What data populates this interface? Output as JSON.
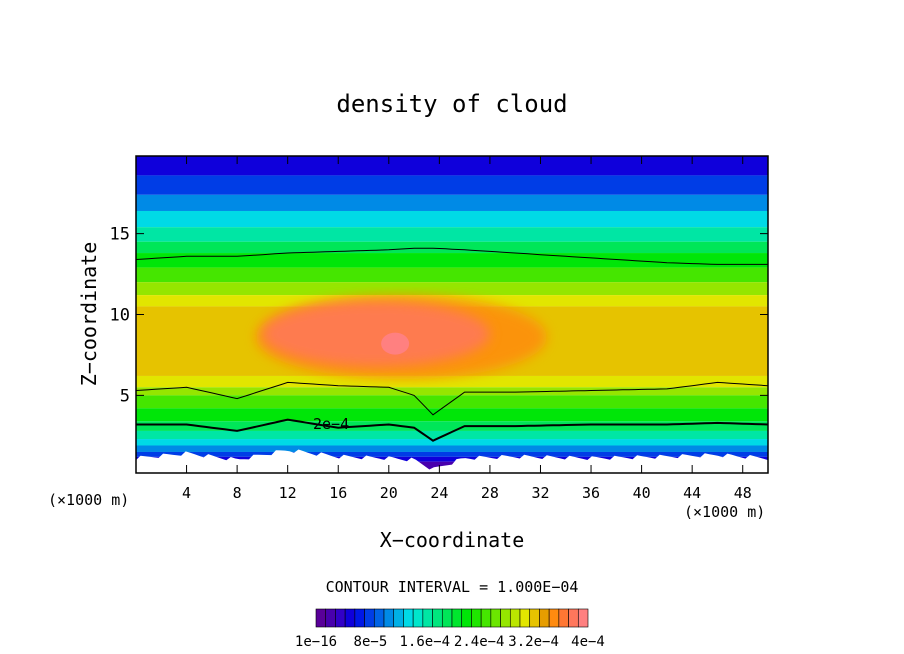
{
  "chart_data": {
    "type": "heatmap",
    "title": "density of cloud",
    "xlabel": "X−coordinate",
    "ylabel": "Z−coordinate",
    "x_unit_left": "(×1000 m)",
    "x_unit_right": "(×1000 m)",
    "xlim": [
      0,
      50
    ],
    "ylim": [
      0.2,
      19.8
    ],
    "x_ticks": [
      4,
      8,
      12,
      16,
      20,
      24,
      28,
      32,
      36,
      40,
      44,
      48
    ],
    "y_ticks": [
      5,
      10,
      15
    ],
    "contour_interval_label": "CONTOUR INTERVAL = 1.000E−04",
    "contour_label": "2e−4",
    "colorbar": {
      "labels": [
        "1e−16",
        "8e−5",
        "1.6e−4",
        "2.4e−4",
        "3.2e−4",
        "4e−4"
      ],
      "levels": 28,
      "vmin": 0,
      "vmax": 0.0004
    },
    "cloud_layer": {
      "x": [
        0,
        4,
        8,
        12,
        16,
        20,
        22,
        23.5,
        26,
        30,
        36,
        42,
        46,
        50
      ],
      "base_z": [
        1.0,
        1.3,
        0.9,
        1.5,
        1.1,
        1.0,
        0.9,
        0.3,
        1.0,
        1.1,
        1.0,
        1.1,
        1.2,
        1.0
      ],
      "contour_2e4_z": [
        3.2,
        3.2,
        2.8,
        3.5,
        3.0,
        3.2,
        3.0,
        2.2,
        3.1,
        3.1,
        3.2,
        3.2,
        3.3,
        3.2
      ],
      "contour_low_z": [
        5.3,
        5.5,
        4.8,
        5.8,
        5.6,
        5.5,
        5.0,
        3.8,
        5.2,
        5.2,
        5.3,
        5.4,
        5.8,
        5.6
      ],
      "contour_high_z": [
        13.4,
        13.6,
        13.6,
        13.8,
        13.9,
        14.0,
        14.1,
        14.1,
        14.0,
        13.8,
        13.5,
        13.2,
        13.1,
        13.1
      ],
      "max_density_center": {
        "x": 20.5,
        "z": 8.2,
        "value": 0.0004
      }
    }
  }
}
